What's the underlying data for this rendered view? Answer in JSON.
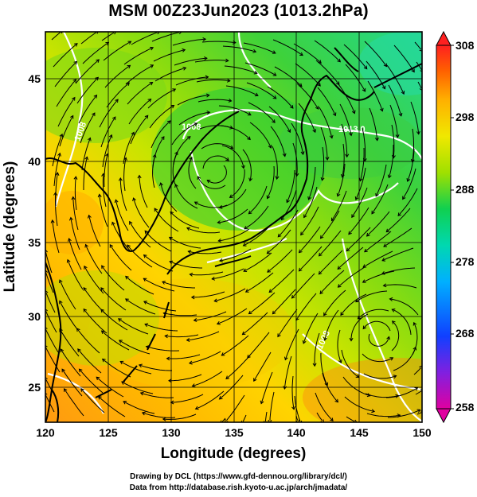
{
  "title": "MSM 00Z23Jun2023 (1013.2hPa)",
  "map": {
    "lon_range": [
      120,
      150
    ],
    "lat_range": [
      22.5,
      47.5
    ],
    "xlabel": "Longitude (degrees)",
    "ylabel": "Latitude  (degrees)",
    "x_ticks": [
      "120",
      "125",
      "130",
      "135",
      "140",
      "145",
      "150"
    ],
    "y_ticks": [
      "25",
      "30",
      "35",
      "40",
      "45"
    ],
    "contour_labels": [
      "1008",
      "1008",
      "1013.0",
      "1008"
    ],
    "colorbar": {
      "ticks": [
        "308",
        "298",
        "288",
        "278",
        "268",
        "258"
      ],
      "min": 258,
      "max": 308,
      "colors": [
        "#e000a0",
        "#8020e0",
        "#1040ff",
        "#00b0ff",
        "#00d8b0",
        "#10d050",
        "#a0e000",
        "#f0e800",
        "#ffb000",
        "#ff6000",
        "#ff2020"
      ]
    },
    "field_colors": {
      "south_orange": "#ff9a10",
      "mid_yellow": "#ffd400",
      "yellow_green": "#c8e400",
      "green": "#3ed23a",
      "cyan_green": "#22d890"
    }
  },
  "credits": {
    "line1": "Drawing by DCL (https://www.gfd-dennou.org/library/dcl/)",
    "line2": "Data from http://database.rish.kyoto-u.ac.jp/arch/jmadata/"
  }
}
